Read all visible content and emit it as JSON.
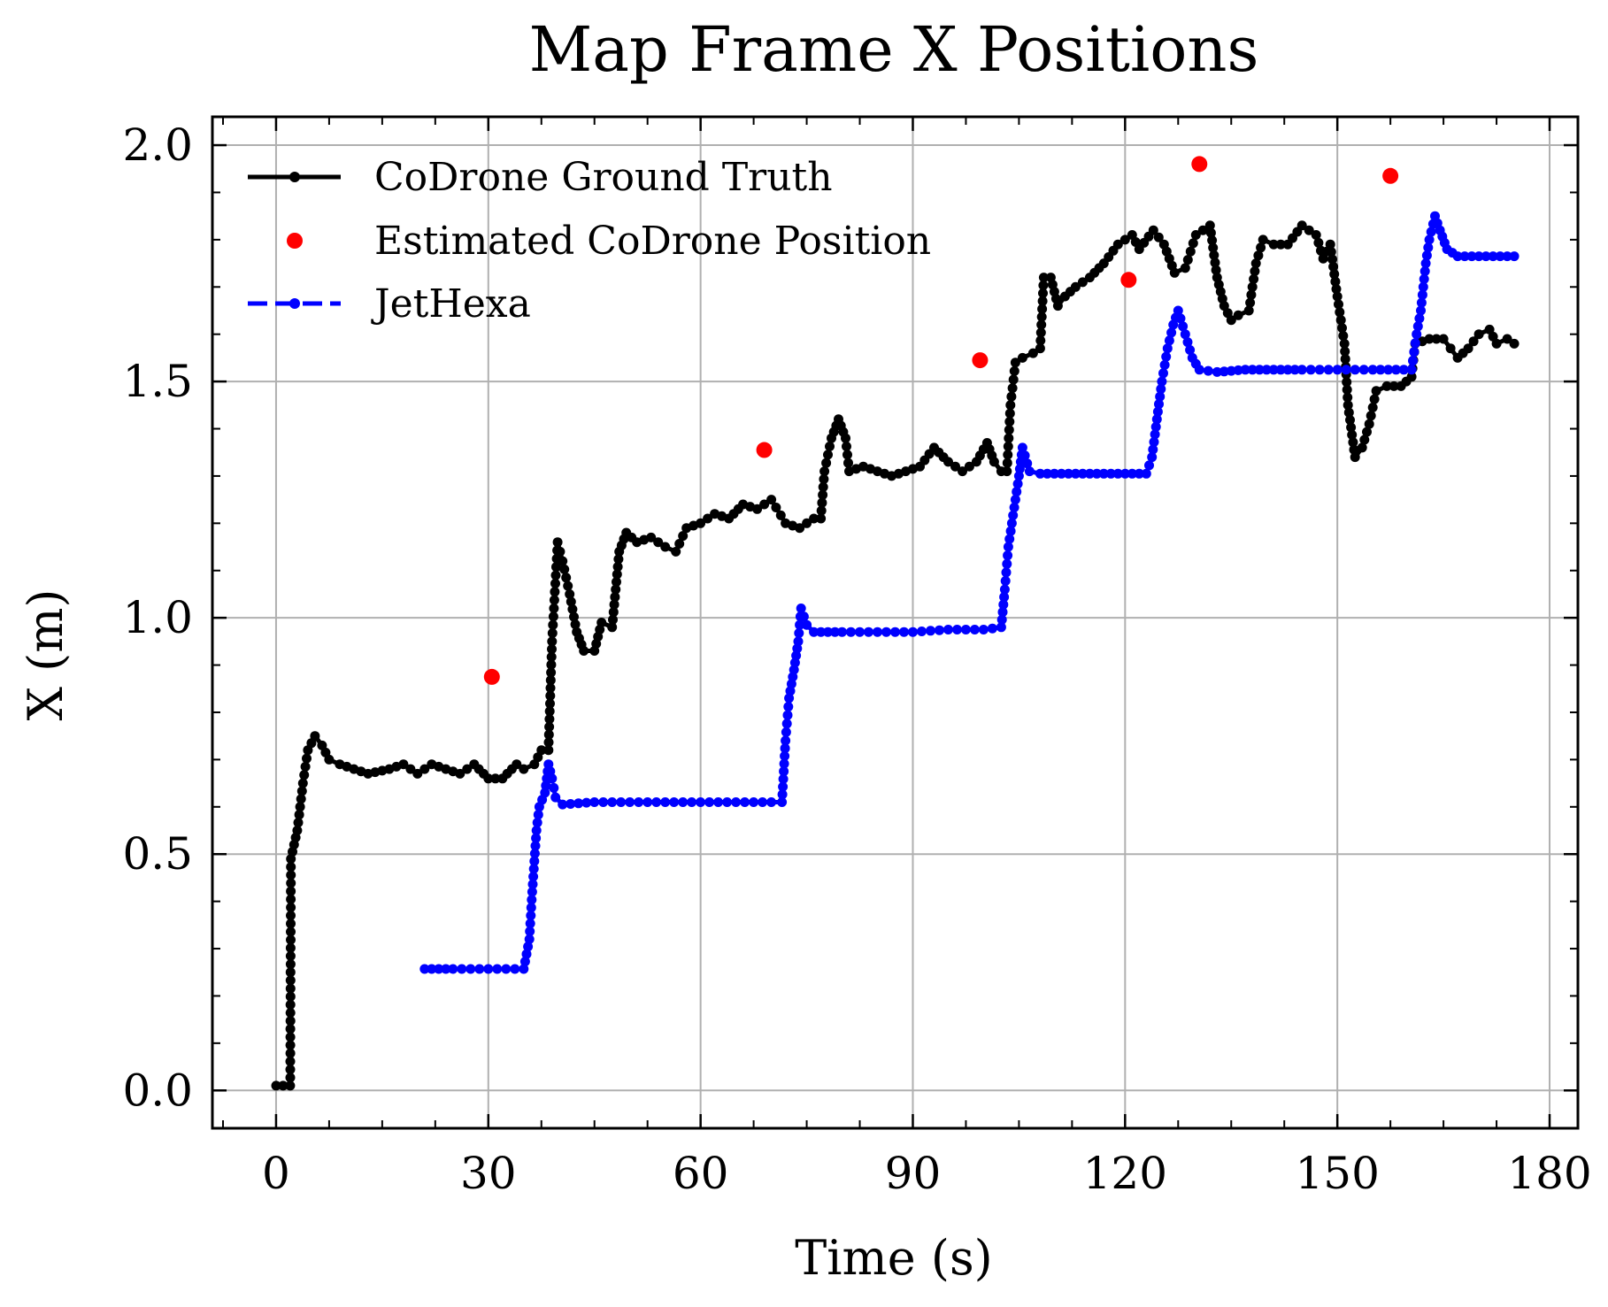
{
  "chart_data": {
    "type": "line",
    "title": "Map Frame X Positions",
    "xlabel": "Time (s)",
    "ylabel": "X (m)",
    "xlim": [
      -9,
      184
    ],
    "ylim": [
      -0.08,
      2.06
    ],
    "xticks": [
      0,
      30,
      60,
      90,
      120,
      150,
      180
    ],
    "yticks": [
      0.0,
      0.5,
      1.0,
      1.5,
      2.0
    ],
    "xtick_labels": [
      "0",
      "30",
      "60",
      "90",
      "120",
      "150",
      "180"
    ],
    "ytick_labels": [
      "0.0",
      "0.5",
      "1.0",
      "1.5",
      "2.0"
    ],
    "grid": true,
    "legend_placement": "top-left",
    "series": [
      {
        "name": "CoDrone Ground Truth",
        "style": "solid-line-with-markers",
        "color": "#000000",
        "points": [
          [
            0,
            0.01
          ],
          [
            2,
            0.01
          ],
          [
            2.1,
            0.49
          ],
          [
            3,
            0.55
          ],
          [
            3.8,
            0.65
          ],
          [
            4.5,
            0.72
          ],
          [
            5.5,
            0.75
          ],
          [
            6.5,
            0.73
          ],
          [
            7.5,
            0.7
          ],
          [
            9,
            0.69
          ],
          [
            11,
            0.68
          ],
          [
            13,
            0.67
          ],
          [
            16,
            0.68
          ],
          [
            18,
            0.69
          ],
          [
            20,
            0.67
          ],
          [
            22,
            0.69
          ],
          [
            24,
            0.68
          ],
          [
            26,
            0.67
          ],
          [
            28,
            0.69
          ],
          [
            30,
            0.66
          ],
          [
            32,
            0.66
          ],
          [
            34,
            0.69
          ],
          [
            35,
            0.68
          ],
          [
            36.5,
            0.69
          ],
          [
            37.5,
            0.72
          ],
          [
            38.5,
            0.72
          ],
          [
            39,
            0.95
          ],
          [
            39.8,
            1.16
          ],
          [
            40.5,
            1.12
          ],
          [
            41.5,
            1.05
          ],
          [
            42.5,
            0.97
          ],
          [
            43.5,
            0.93
          ],
          [
            45,
            0.93
          ],
          [
            46,
            0.99
          ],
          [
            47.5,
            0.98
          ],
          [
            48.5,
            1.14
          ],
          [
            49.5,
            1.18
          ],
          [
            51,
            1.16
          ],
          [
            53,
            1.17
          ],
          [
            55,
            1.15
          ],
          [
            56.5,
            1.14
          ],
          [
            58,
            1.19
          ],
          [
            60,
            1.2
          ],
          [
            62,
            1.22
          ],
          [
            64,
            1.21
          ],
          [
            66,
            1.24
          ],
          [
            68,
            1.23
          ],
          [
            70,
            1.25
          ],
          [
            72,
            1.2
          ],
          [
            74,
            1.19
          ],
          [
            76,
            1.21
          ],
          [
            77,
            1.21
          ],
          [
            77.5,
            1.31
          ],
          [
            78.5,
            1.38
          ],
          [
            79.5,
            1.42
          ],
          [
            80.5,
            1.38
          ],
          [
            81,
            1.31
          ],
          [
            83,
            1.32
          ],
          [
            85,
            1.31
          ],
          [
            87,
            1.3
          ],
          [
            89,
            1.31
          ],
          [
            91,
            1.32
          ],
          [
            93,
            1.36
          ],
          [
            95,
            1.33
          ],
          [
            97,
            1.31
          ],
          [
            99,
            1.33
          ],
          [
            100.5,
            1.37
          ],
          [
            101.5,
            1.33
          ],
          [
            102.5,
            1.31
          ],
          [
            103.3,
            1.31
          ],
          [
            103.8,
            1.45
          ],
          [
            104.5,
            1.54
          ],
          [
            105.5,
            1.55
          ],
          [
            107,
            1.56
          ],
          [
            108,
            1.57
          ],
          [
            108.5,
            1.72
          ],
          [
            109.5,
            1.72
          ],
          [
            110.5,
            1.66
          ],
          [
            111.5,
            1.68
          ],
          [
            113,
            1.7
          ],
          [
            115,
            1.72
          ],
          [
            117,
            1.75
          ],
          [
            119,
            1.79
          ],
          [
            121,
            1.81
          ],
          [
            122,
            1.78
          ],
          [
            124,
            1.82
          ],
          [
            125.5,
            1.79
          ],
          [
            127,
            1.73
          ],
          [
            128.5,
            1.74
          ],
          [
            130,
            1.81
          ],
          [
            132,
            1.83
          ],
          [
            133,
            1.72
          ],
          [
            134,
            1.66
          ],
          [
            135,
            1.63
          ],
          [
            136,
            1.64
          ],
          [
            137.5,
            1.65
          ],
          [
            138.5,
            1.75
          ],
          [
            139.5,
            1.8
          ],
          [
            141,
            1.79
          ],
          [
            143,
            1.79
          ],
          [
            145,
            1.83
          ],
          [
            147,
            1.81
          ],
          [
            148,
            1.76
          ],
          [
            149,
            1.79
          ],
          [
            150,
            1.68
          ],
          [
            151,
            1.58
          ],
          [
            151.5,
            1.45
          ],
          [
            152.5,
            1.34
          ],
          [
            153.5,
            1.36
          ],
          [
            154.5,
            1.41
          ],
          [
            155.5,
            1.48
          ],
          [
            157,
            1.49
          ],
          [
            159,
            1.49
          ],
          [
            160.5,
            1.51
          ],
          [
            161,
            1.58
          ],
          [
            163,
            1.59
          ],
          [
            165,
            1.59
          ],
          [
            166,
            1.57
          ],
          [
            167,
            1.55
          ],
          [
            168.5,
            1.57
          ],
          [
            170,
            1.6
          ],
          [
            171.5,
            1.61
          ],
          [
            172.5,
            1.58
          ],
          [
            174,
            1.59
          ],
          [
            175,
            1.58
          ]
        ]
      },
      {
        "name": "Estimated CoDrone Position",
        "style": "markers-only",
        "color": "#ff0000",
        "points": [
          [
            30.5,
            0.875
          ],
          [
            69,
            1.355
          ],
          [
            99.5,
            1.545
          ],
          [
            120.5,
            1.715
          ],
          [
            130.5,
            1.96
          ],
          [
            157.5,
            1.935
          ]
        ]
      },
      {
        "name": "JetHexa",
        "style": "dashed-line-with-markers",
        "color": "#0000ff",
        "points": [
          [
            21,
            0.257
          ],
          [
            25,
            0.257
          ],
          [
            30,
            0.257
          ],
          [
            35,
            0.257
          ],
          [
            35.8,
            0.32
          ],
          [
            36.2,
            0.42
          ],
          [
            36.8,
            0.55
          ],
          [
            37.2,
            0.6
          ],
          [
            38,
            0.63
          ],
          [
            38.5,
            0.69
          ],
          [
            39,
            0.66
          ],
          [
            39.5,
            0.62
          ],
          [
            40.5,
            0.605
          ],
          [
            45,
            0.61
          ],
          [
            50,
            0.61
          ],
          [
            55,
            0.61
          ],
          [
            60,
            0.61
          ],
          [
            65,
            0.61
          ],
          [
            70,
            0.61
          ],
          [
            71.5,
            0.61
          ],
          [
            72,
            0.74
          ],
          [
            72.5,
            0.83
          ],
          [
            73.2,
            0.89
          ],
          [
            73.8,
            0.95
          ],
          [
            74.2,
            1.02
          ],
          [
            75,
            0.985
          ],
          [
            76,
            0.97
          ],
          [
            80,
            0.97
          ],
          [
            85,
            0.97
          ],
          [
            90,
            0.97
          ],
          [
            95,
            0.975
          ],
          [
            100,
            0.975
          ],
          [
            102.5,
            0.98
          ],
          [
            103,
            1.06
          ],
          [
            103.5,
            1.15
          ],
          [
            104,
            1.2
          ],
          [
            104.5,
            1.25
          ],
          [
            105,
            1.3
          ],
          [
            105.5,
            1.36
          ],
          [
            106.5,
            1.31
          ],
          [
            108,
            1.305
          ],
          [
            112,
            1.305
          ],
          [
            116,
            1.305
          ],
          [
            120,
            1.305
          ],
          [
            123,
            1.305
          ],
          [
            123.8,
            1.34
          ],
          [
            124.5,
            1.42
          ],
          [
            125.2,
            1.5
          ],
          [
            126,
            1.57
          ],
          [
            126.8,
            1.62
          ],
          [
            127.5,
            1.65
          ],
          [
            128.5,
            1.6
          ],
          [
            129.5,
            1.55
          ],
          [
            130.5,
            1.525
          ],
          [
            133,
            1.52
          ],
          [
            137,
            1.525
          ],
          [
            141,
            1.525
          ],
          [
            145,
            1.525
          ],
          [
            150,
            1.525
          ],
          [
            155,
            1.525
          ],
          [
            160.5,
            1.525
          ],
          [
            161.2,
            1.6
          ],
          [
            161.8,
            1.65
          ],
          [
            162.5,
            1.75
          ],
          [
            163,
            1.8
          ],
          [
            163.8,
            1.85
          ],
          [
            164.5,
            1.82
          ],
          [
            165.5,
            1.78
          ],
          [
            167,
            1.765
          ],
          [
            170,
            1.765
          ],
          [
            172,
            1.765
          ],
          [
            175,
            1.765
          ]
        ]
      }
    ]
  }
}
